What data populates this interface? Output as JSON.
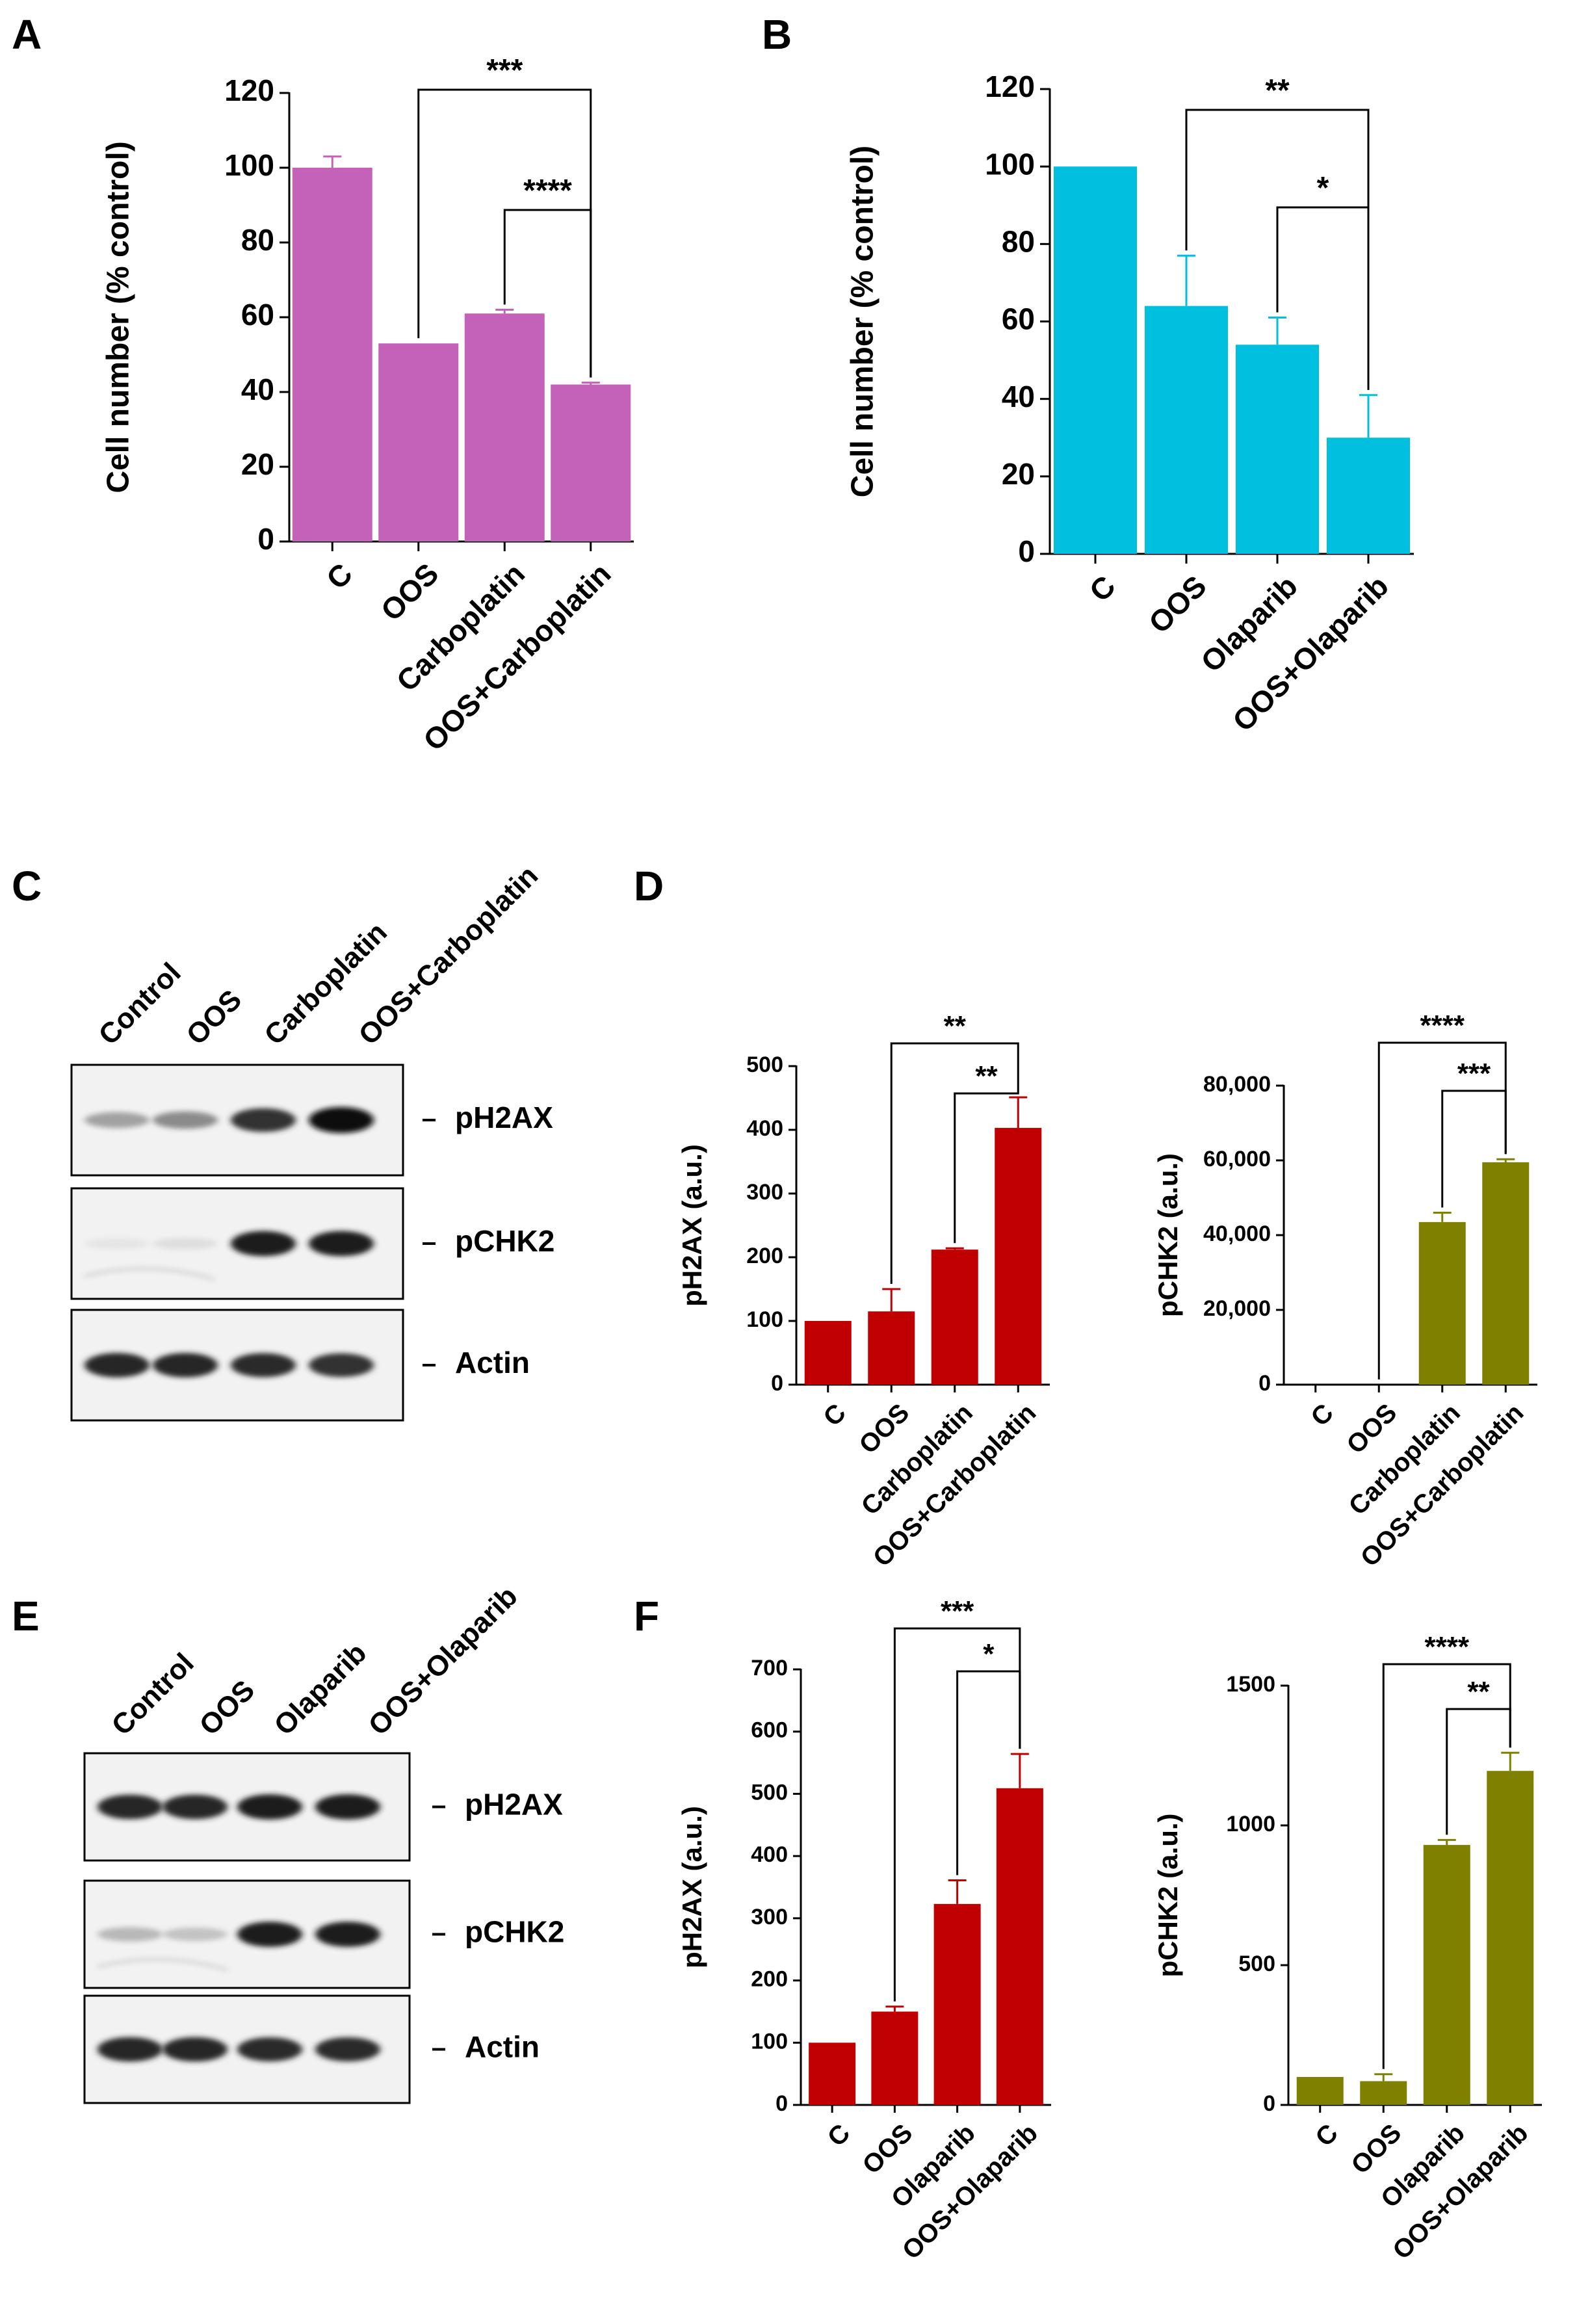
{
  "panels": {
    "a": "A",
    "b": "B",
    "c": "C",
    "d": "D",
    "e": "E",
    "f": "F"
  },
  "blots": {
    "c": {
      "lanes": [
        "Control",
        "OOS",
        "Carboplatin",
        "OOS+Carboplatin"
      ],
      "rows": [
        {
          "label": "pH2AX",
          "intensities": [
            0.35,
            0.45,
            0.85,
            1.0
          ],
          "noise": 0.0
        },
        {
          "label": "pCHK2",
          "intensities": [
            0.05,
            0.08,
            0.95,
            0.95
          ],
          "noise": 0.15
        },
        {
          "label": "Actin",
          "intensities": [
            0.9,
            0.9,
            0.88,
            0.85
          ],
          "noise": 0.0
        }
      ]
    },
    "e": {
      "lanes": [
        "Control",
        "OOS",
        "Olaparib",
        "OOS+Olaparib"
      ],
      "rows": [
        {
          "label": "pH2AX",
          "intensities": [
            0.9,
            0.9,
            0.95,
            0.95
          ],
          "noise": 0.0
        },
        {
          "label": "pCHK2",
          "intensities": [
            0.25,
            0.2,
            0.95,
            0.95
          ],
          "noise": 0.1
        },
        {
          "label": "Actin",
          "intensities": [
            0.9,
            0.9,
            0.88,
            0.88
          ],
          "noise": 0.0
        }
      ]
    }
  },
  "chart_data": [
    {
      "id": "A",
      "type": "bar",
      "color": "#c362b8",
      "categories": [
        "C",
        "OOS",
        "Carboplatin",
        "OOS+Carboplatin"
      ],
      "values": [
        100,
        53,
        61,
        42
      ],
      "errors": [
        3,
        0,
        1,
        0.5
      ],
      "ylabel": "Cell number (% control)",
      "ylim": [
        0,
        120
      ],
      "yticks": [
        "0",
        "20",
        "40",
        "60",
        "80",
        "100",
        "120"
      ],
      "significance": [
        {
          "from": 1,
          "to": 3,
          "label": "***"
        },
        {
          "from": 2,
          "to": 3,
          "label": "****"
        }
      ]
    },
    {
      "id": "B",
      "type": "bar",
      "color": "#00bfdf",
      "categories": [
        "C",
        "OOS",
        "Olaparib",
        "OOS+Olaparib"
      ],
      "values": [
        100,
        64,
        54,
        30
      ],
      "errors": [
        0,
        13,
        7,
        11
      ],
      "ylabel": "Cell number (% control)",
      "ylim": [
        0,
        120
      ],
      "yticks": [
        "0",
        "20",
        "40",
        "60",
        "80",
        "100",
        "120"
      ],
      "significance": [
        {
          "from": 1,
          "to": 3,
          "label": "**"
        },
        {
          "from": 2,
          "to": 3,
          "label": "*"
        }
      ]
    },
    {
      "id": "D1",
      "type": "bar",
      "color": "#c00000",
      "categories": [
        "C",
        "OOS",
        "Carboplatin",
        "OOS+Carboplatin"
      ],
      "values": [
        100,
        115,
        212,
        403
      ],
      "errors": [
        0,
        35,
        2,
        48
      ],
      "ylabel": "pH2AX (a.u.)",
      "ylim": [
        0,
        500
      ],
      "yticks": [
        "0",
        "100",
        "200",
        "300",
        "400",
        "500"
      ],
      "significance": [
        {
          "from": 1,
          "to": 3,
          "label": "**"
        },
        {
          "from": 2,
          "to": 3,
          "label": "**"
        }
      ]
    },
    {
      "id": "D2",
      "type": "bar",
      "color": "#808000",
      "categories": [
        "C",
        "OOS",
        "Carboplatin",
        "OOS+Carboplatin"
      ],
      "values": [
        0,
        0,
        43500,
        59500
      ],
      "errors": [
        0,
        0,
        2500,
        800
      ],
      "ylabel": "pCHK2 (a.u.)",
      "ylim": [
        0,
        80000
      ],
      "yticks": [
        "0",
        "20,000",
        "40,000",
        "60,000",
        "80,000"
      ],
      "significance": [
        {
          "from": 1,
          "to": 3,
          "label": "****"
        },
        {
          "from": 2,
          "to": 3,
          "label": "***"
        }
      ]
    },
    {
      "id": "F1",
      "type": "bar",
      "color": "#c00000",
      "categories": [
        "C",
        "OOS",
        "Olaparib",
        "OOS+Olaparib"
      ],
      "values": [
        100,
        150,
        323,
        509
      ],
      "errors": [
        0,
        8,
        38,
        55
      ],
      "ylabel": "pH2AX (a.u.)",
      "ylim": [
        0,
        700
      ],
      "yticks": [
        "0",
        "100",
        "200",
        "300",
        "400",
        "500",
        "600",
        "700"
      ],
      "significance": [
        {
          "from": 1,
          "to": 3,
          "label": "***"
        },
        {
          "from": 2,
          "to": 3,
          "label": "*"
        }
      ]
    },
    {
      "id": "F2",
      "type": "bar",
      "color": "#808000",
      "categories": [
        "C",
        "OOS",
        "Olaparib",
        "OOS+Olaparib"
      ],
      "values": [
        100,
        85,
        930,
        1195
      ],
      "errors": [
        0,
        25,
        18,
        65
      ],
      "ylabel": "pCHK2 (a.u.)",
      "ylim": [
        0,
        1500
      ],
      "yticks": [
        "0",
        "500",
        "1000",
        "1500"
      ],
      "significance": [
        {
          "from": 1,
          "to": 3,
          "label": "****"
        },
        {
          "from": 2,
          "to": 3,
          "label": "**"
        }
      ]
    }
  ]
}
